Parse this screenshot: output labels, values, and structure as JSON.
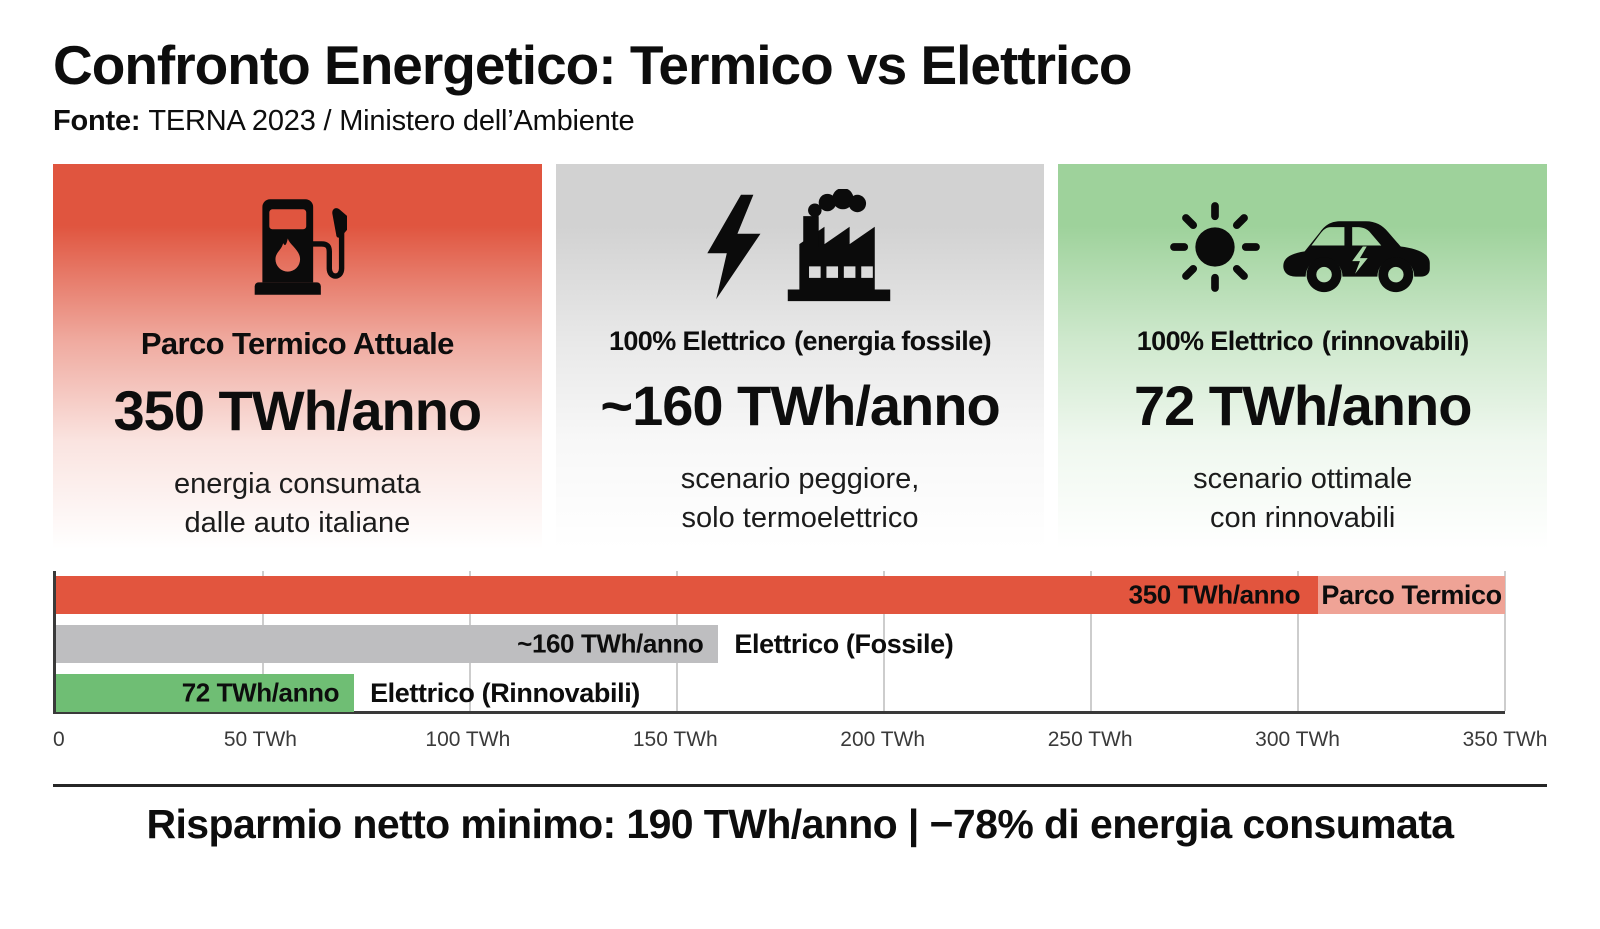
{
  "header": {
    "title": "Confronto Energetico: Termico vs Elettrico",
    "source_label": "Fonte:",
    "source_text": "TERNA 2023 / Ministero dell’Ambiente"
  },
  "cards": [
    {
      "icons": [
        "fuel-pump"
      ],
      "heading_main": "Parco Termico Attuale",
      "heading_sub": "",
      "value": "350 TWh/anno",
      "desc": [
        "energia consumata",
        "dalle auto italiane"
      ],
      "accent_top": "#e0553f"
    },
    {
      "icons": [
        "lightning-bolt",
        "factory"
      ],
      "heading_main": "100% Elettrico",
      "heading_sub": "(energia fossile)",
      "value": "~160 TWh/anno",
      "desc": [
        "scenario peggiore,",
        "solo termoelettrico"
      ],
      "accent_top": "#d2d2d2"
    },
    {
      "icons": [
        "sun",
        "electric-car"
      ],
      "heading_main": "100% Elettrico",
      "heading_sub": "(rinnovabili)",
      "value": "72 TWh/anno",
      "desc": [
        "scenario ottimale",
        "con rinnovabili"
      ],
      "accent_top": "#9ed29b"
    }
  ],
  "chart_data": {
    "type": "bar",
    "orientation": "horizontal",
    "categories": [
      "Parco Termico",
      "Elettrico (Fossile)",
      "Elettrico (Rinnovabili)"
    ],
    "values": [
      350,
      160,
      72
    ],
    "value_labels": [
      "350 TWh/anno",
      "~160 TWh/anno",
      "72 TWh/anno"
    ],
    "bar_colors": [
      "#e2553e",
      "#bebec0",
      "#6fbe74"
    ],
    "title": "",
    "xlabel": "",
    "ylabel": "",
    "xlim": [
      0,
      350
    ],
    "x_ticks": [
      0,
      50,
      100,
      150,
      200,
      250,
      300,
      350
    ],
    "x_tick_labels": [
      "0",
      "50 TWh",
      "100 TWh",
      "150 TWh",
      "200 TWh",
      "250 TWh",
      "300 TWh",
      "350 TWh"
    ],
    "grid": true,
    "legend": "none",
    "category_label_style": [
      "inside-faded-end-chip",
      "outside-right",
      "outside-right"
    ]
  },
  "footer": {
    "summary": "Risparmio netto minimo: 190 TWh/anno | −78% di energia consumata"
  }
}
